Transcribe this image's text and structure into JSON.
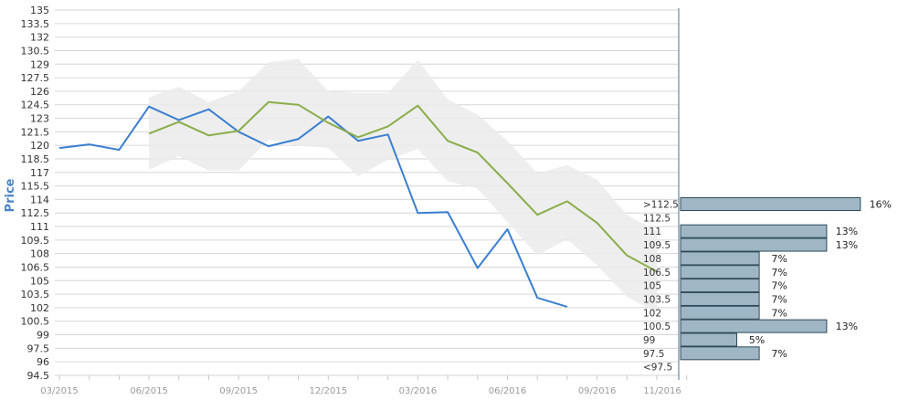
{
  "chart_data": {
    "type": "line",
    "ylabel": "Price",
    "ylim": [
      94.5,
      135
    ],
    "y_ticks": [
      "135",
      "133.5",
      "132",
      "130.5",
      "129",
      "127.5",
      "126",
      "124.5",
      "123",
      "121.5",
      "120",
      "118.5",
      "117",
      "115.5",
      "114",
      "112.5",
      "111",
      "109.5",
      "108",
      "106.5",
      "105",
      "103.5",
      "102",
      "100.5",
      "99",
      "97.5",
      "96",
      "94.5"
    ],
    "x_ticks": [
      "03/2015",
      "06/2015",
      "09/2015",
      "12/2015",
      "03/2016",
      "06/2016",
      "09/2016",
      "11/2016"
    ],
    "grid": true,
    "series": [
      {
        "color": "#3a7fd1",
        "points": [
          [
            "2015-03",
            119.7
          ],
          [
            "2015-04",
            120.1
          ],
          [
            "2015-05",
            119.5
          ],
          [
            "2015-06",
            124.3
          ],
          [
            "2015-07",
            122.8
          ],
          [
            "2015-08",
            124.0
          ],
          [
            "2015-09",
            121.5
          ],
          [
            "2015-10",
            119.9
          ],
          [
            "2015-11",
            120.7
          ],
          [
            "2015-12",
            123.2
          ],
          [
            "2016-01",
            120.5
          ],
          [
            "2016-02",
            121.2
          ],
          [
            "2016-03",
            112.5
          ],
          [
            "2016-04",
            112.6
          ],
          [
            "2016-05",
            106.4
          ],
          [
            "2016-06",
            110.7
          ],
          [
            "2016-07",
            103.1
          ],
          [
            "2016-08",
            102.1
          ]
        ]
      },
      {
        "color": "#8aad4a",
        "points": [
          [
            "2015-06",
            121.3
          ],
          [
            "2015-07",
            122.6
          ],
          [
            "2015-08",
            121.1
          ],
          [
            "2015-09",
            121.6
          ],
          [
            "2015-10",
            124.8
          ],
          [
            "2015-11",
            124.5
          ],
          [
            "2015-12",
            122.5
          ],
          [
            "2016-01",
            120.9
          ],
          [
            "2016-02",
            122.1
          ],
          [
            "2016-03",
            124.4
          ],
          [
            "2016-04",
            120.5
          ],
          [
            "2016-05",
            119.2
          ],
          [
            "2016-06",
            115.8
          ],
          [
            "2016-07",
            112.3
          ],
          [
            "2016-08",
            113.8
          ],
          [
            "2016-09",
            111.4
          ],
          [
            "2016-10",
            107.8
          ],
          [
            "2016-11",
            106.0
          ]
        ]
      }
    ],
    "range_band": {
      "color": "#ebebeb",
      "upper": [
        [
          "2015-06",
          125.3
        ],
        [
          "2015-07",
          126.5
        ],
        [
          "2015-08",
          124.8
        ],
        [
          "2015-09",
          126.0
        ],
        [
          "2015-10",
          129.2
        ],
        [
          "2015-11",
          129.6
        ],
        [
          "2015-12",
          126.0
        ],
        [
          "2016-01",
          125.8
        ],
        [
          "2016-02",
          125.8
        ],
        [
          "2016-03",
          129.5
        ],
        [
          "2016-04",
          125.1
        ],
        [
          "2016-05",
          123.4
        ],
        [
          "2016-06",
          120.5
        ],
        [
          "2016-07",
          116.9
        ],
        [
          "2016-08",
          117.8
        ],
        [
          "2016-09",
          116.2
        ],
        [
          "2016-10",
          112.3
        ],
        [
          "2016-11",
          110.5
        ]
      ],
      "lower": [
        [
          "2015-06",
          117.3
        ],
        [
          "2015-07",
          118.8
        ],
        [
          "2015-08",
          117.2
        ],
        [
          "2015-09",
          117.2
        ],
        [
          "2015-10",
          120.6
        ],
        [
          "2015-11",
          120.0
        ],
        [
          "2015-12",
          119.7
        ],
        [
          "2016-01",
          116.6
        ],
        [
          "2016-02",
          118.4
        ],
        [
          "2016-03",
          119.6
        ],
        [
          "2016-04",
          116.0
        ],
        [
          "2016-05",
          115.2
        ],
        [
          "2016-06",
          111.5
        ],
        [
          "2016-07",
          107.8
        ],
        [
          "2016-08",
          109.6
        ],
        [
          "2016-09",
          106.7
        ],
        [
          "2016-10",
          103.2
        ],
        [
          "2016-11",
          101.5
        ]
      ]
    },
    "distribution": {
      "bar_color": "#9fb7c4",
      "bars": [
        {
          "label": ">112.5",
          "value": 16,
          "pct": "16%"
        },
        {
          "label": "112.5",
          "value": 0,
          "pct": ""
        },
        {
          "label": "111",
          "value": 13,
          "pct": "13%"
        },
        {
          "label": "109.5",
          "value": 13,
          "pct": "13%"
        },
        {
          "label": "108",
          "value": 7,
          "pct": "7%"
        },
        {
          "label": "106.5",
          "value": 7,
          "pct": "7%"
        },
        {
          "label": "105",
          "value": 7,
          "pct": "7%"
        },
        {
          "label": "103.5",
          "value": 7,
          "pct": "7%"
        },
        {
          "label": "102",
          "value": 7,
          "pct": "7%"
        },
        {
          "label": "100.5",
          "value": 13,
          "pct": "13%"
        },
        {
          "label": "99",
          "value": 5,
          "pct": "5%"
        },
        {
          "label": "97.5",
          "value": 7,
          "pct": "7%"
        },
        {
          "label": "<97.5",
          "value": 0,
          "pct": ""
        }
      ]
    }
  }
}
